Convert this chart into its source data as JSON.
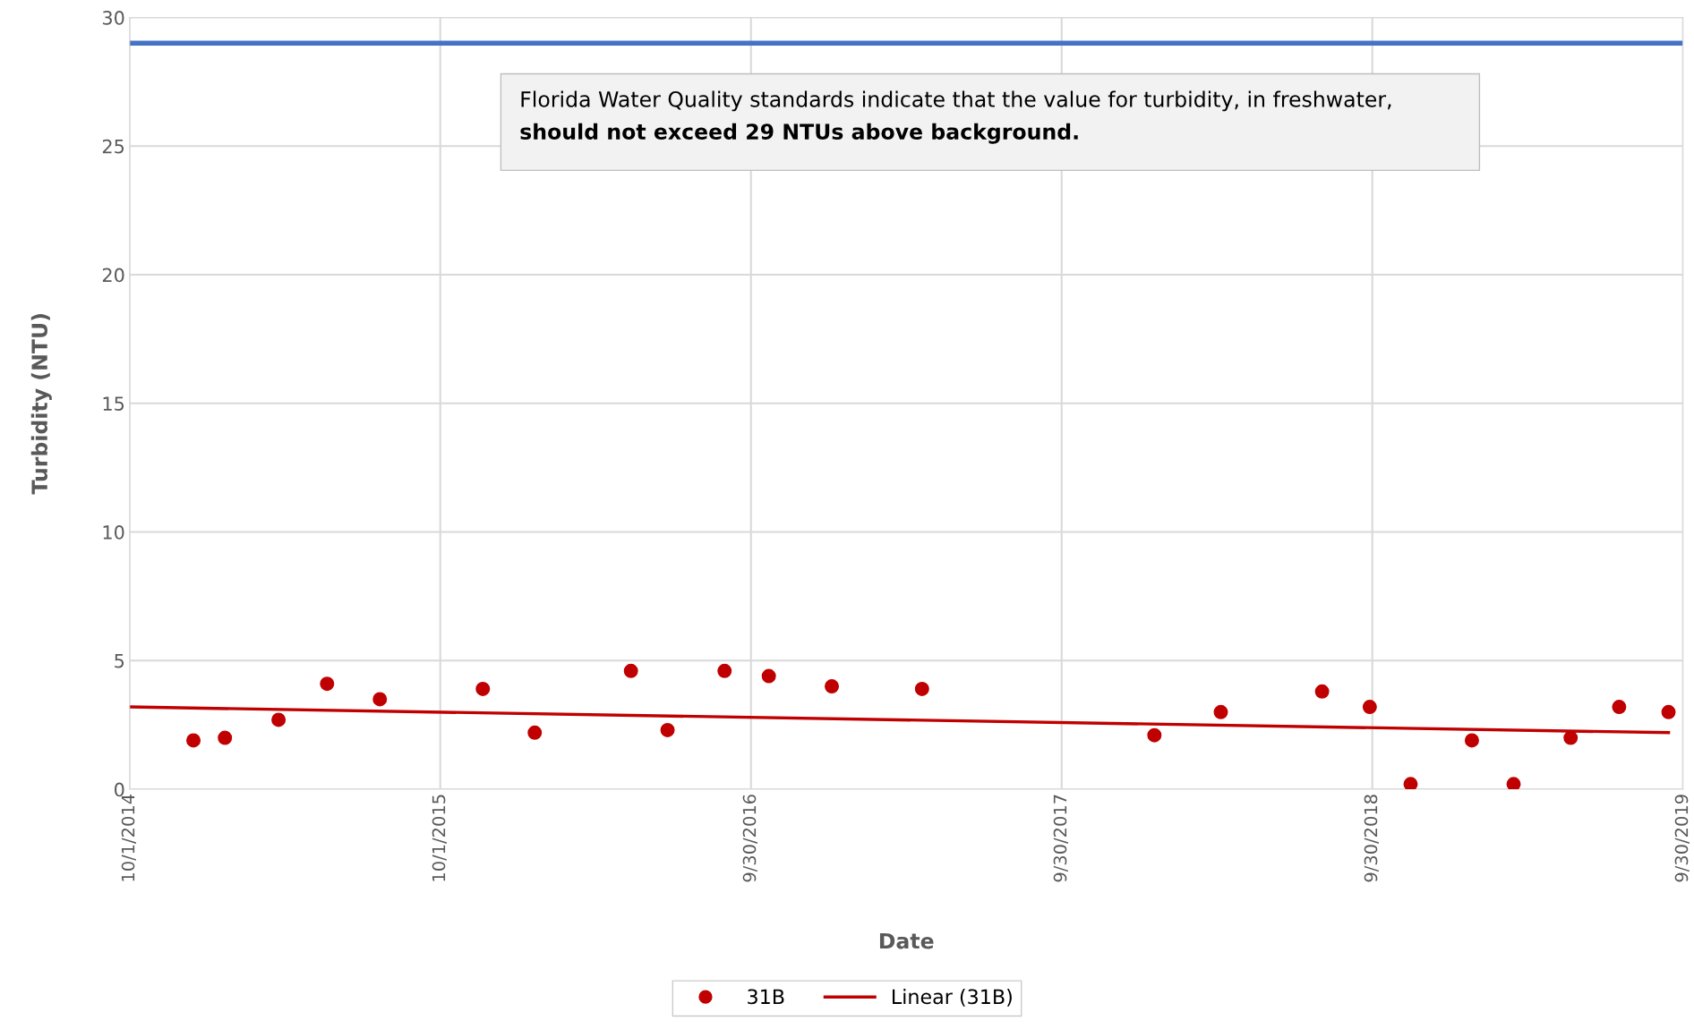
{
  "chart_data": {
    "type": "scatter",
    "xlabel": "Date",
    "ylabel": "Turbidity (NTU)",
    "annotations": [
      "Florida Water Quality standards indicate that the value for turbidity, in freshwater,",
      "should not exceed 29 NTUs above background."
    ],
    "series": [
      {
        "name": "31B",
        "color": "#c00000",
        "marker": "circle",
        "x": [
          "2014-12-15",
          "2015-01-21",
          "2015-03-25",
          "2015-05-21",
          "2015-07-22",
          "2015-11-20",
          "2016-01-20",
          "2016-05-12",
          "2016-06-24",
          "2016-08-30",
          "2016-10-21",
          "2017-01-03",
          "2017-04-19",
          "2018-01-17",
          "2018-04-05",
          "2018-08-02",
          "2018-09-27",
          "2018-11-14",
          "2019-01-25",
          "2019-03-15",
          "2019-05-21",
          "2019-07-17",
          "2019-09-13"
        ],
        "values": [
          1.9,
          2.0,
          2.7,
          4.1,
          3.5,
          3.9,
          2.2,
          4.6,
          2.3,
          4.6,
          4.4,
          4.0,
          3.9,
          2.1,
          3.0,
          3.8,
          3.2,
          0.2,
          1.9,
          0.2,
          2.0,
          3.2,
          3.0
        ]
      },
      {
        "name": "Linear (31B)",
        "type": "line",
        "color": "#c00000",
        "line_style": "solid",
        "x": [
          "2014-10-01",
          "2019-09-13"
        ],
        "values": [
          3.2,
          2.2
        ]
      }
    ],
    "ref_lines": [
      {
        "axis": "y",
        "value": 29,
        "color": "#4472c4"
      }
    ],
    "xlim": [
      "2014-10-01",
      "2019-09-30"
    ],
    "xticks": [
      {
        "value": "2014-10-01",
        "label": "10/1/2014"
      },
      {
        "value": "2015-10-01",
        "label": "10/1/2015"
      },
      {
        "value": "2016-09-30",
        "label": "9/30/2016"
      },
      {
        "value": "2017-09-30",
        "label": "9/30/2017"
      },
      {
        "value": "2018-09-30",
        "label": "9/30/2018"
      },
      {
        "value": "2019-09-30",
        "label": "9/30/2019"
      }
    ],
    "ylim": [
      0,
      30
    ],
    "yticks": [
      0,
      5,
      10,
      15,
      20,
      25,
      30
    ],
    "grid": true,
    "legend": "bottom"
  }
}
